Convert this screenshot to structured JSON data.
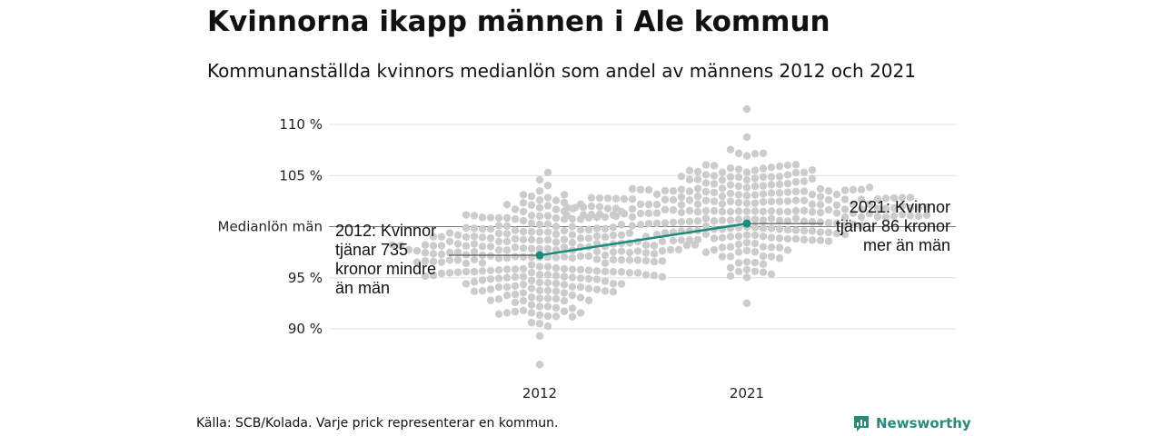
{
  "title": "Kvinnorna ikapp männen i Ale kommun",
  "subtitle": "Kommunanställda kvinnors medianlön som andel av männens 2012 och 2021",
  "source": "Källa: SCB/Kolada. Varje prick representerar en kommun.",
  "brand": {
    "name": "Newsworthy",
    "icon": "newsworthy-logo-icon"
  },
  "colors": {
    "dots": "#cccccc",
    "highlight": "#1a8a7d",
    "grid": "#e0e0e0",
    "reference": "#777777"
  },
  "chart_data": {
    "type": "scatter",
    "categories": [
      "2012",
      "2021"
    ],
    "y_ticks": [
      {
        "value": 90,
        "label": "90 %"
      },
      {
        "value": 95,
        "label": "95 %"
      },
      {
        "value": 105,
        "label": "105 %"
      },
      {
        "value": 110,
        "label": "110 %"
      }
    ],
    "ylim": [
      85.5,
      112.5
    ],
    "reference_line": {
      "value": 100,
      "label": "Medianlön män"
    },
    "grid": true,
    "distributions": [
      {
        "category": "2012",
        "median": 97,
        "min": 86.5,
        "max": 105.3,
        "n": 290
      },
      {
        "category": "2021",
        "median": 101.5,
        "min": 92.5,
        "max": 111.5,
        "n": 290
      }
    ],
    "highlight": {
      "name": "Ale",
      "values": [
        {
          "category": "2012",
          "value": 97.2
        },
        {
          "category": "2021",
          "value": 100.3
        }
      ]
    },
    "annotations": [
      {
        "category": "2012",
        "lines": [
          "2012: Kvinnor",
          "tjänar 735",
          "kronor mindre",
          "än män"
        ]
      },
      {
        "category": "2021",
        "lines": [
          "2021: Kvinnor",
          "tjänar 86 kronor",
          "mer än män"
        ]
      }
    ]
  }
}
